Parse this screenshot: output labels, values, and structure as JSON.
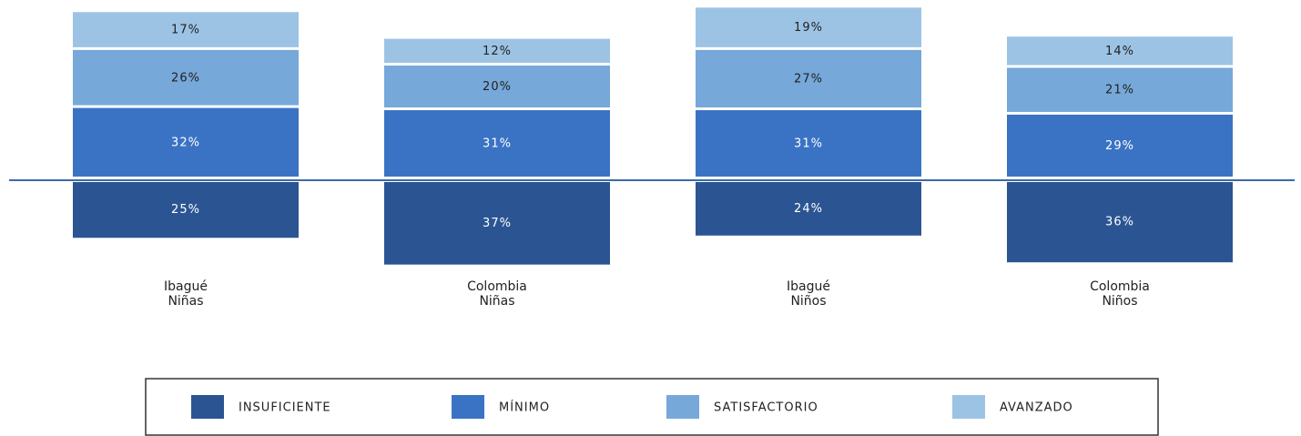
{
  "chart_data": {
    "type": "diverging_bar",
    "categories": [
      [
        "Ibagué",
        "Niñas"
      ],
      [
        "Colombia",
        "Niñas"
      ],
      [
        "Ibagué",
        "Niños"
      ],
      [
        "Colombia",
        "Niños"
      ]
    ],
    "series": [
      {
        "name": "INSUFICIENTE",
        "color": "#2b5592",
        "values": [
          25,
          37,
          24,
          36
        ],
        "value_labels": [
          "25%",
          "37%",
          "24%",
          "36%"
        ]
      },
      {
        "name": "MÍNIMO",
        "color": "#3a73c4",
        "values": [
          32,
          31,
          31,
          29
        ],
        "value_labels": [
          "32%",
          "31%",
          "31%",
          "29%"
        ]
      },
      {
        "name": "SATISFACTORIO",
        "color": "#76a8d9",
        "values": [
          26,
          20,
          27,
          21
        ],
        "value_labels": [
          "26%",
          "20%",
          "27%",
          "21%"
        ]
      },
      {
        "name": "AVANZADO",
        "color": "#9dc3e4",
        "values": [
          17,
          12,
          19,
          14
        ],
        "value_labels": [
          "17%",
          "12%",
          "19%",
          "14%"
        ]
      }
    ]
  }
}
